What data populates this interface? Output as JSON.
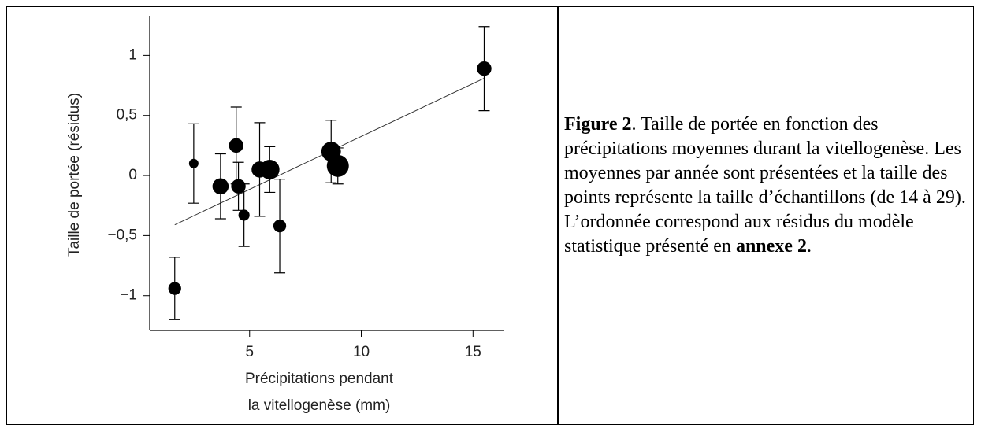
{
  "chart_data": {
    "type": "scatter",
    "ylabel": "Taille de portée (résidus)",
    "xlabel": [
      "Précipitations pendant",
      "la vitellogenèse (mm)"
    ],
    "x": [
      1.65,
      2.5,
      3.7,
      4.4,
      4.5,
      4.75,
      5.45,
      5.9,
      6.35,
      8.65,
      8.95,
      15.5
    ],
    "values": [
      -0.94,
      0.1,
      -0.09,
      0.25,
      -0.09,
      -0.33,
      0.05,
      0.05,
      -0.42,
      0.2,
      0.08,
      0.89
    ],
    "errors": [
      0.26,
      0.33,
      0.27,
      0.32,
      0.2,
      0.26,
      0.39,
      0.19,
      0.39,
      0.26,
      0.15,
      0.35
    ],
    "sizes": [
      18,
      14,
      22,
      20,
      20,
      16,
      22,
      26,
      18,
      26,
      29,
      20
    ],
    "fit": {
      "x": [
        1.65,
        15.5
      ],
      "values": [
        -0.41,
        0.81
      ]
    },
    "color": "#000000",
    "xlim": [
      0.53,
      16.4
    ],
    "xticks": [
      5,
      10,
      15
    ],
    "ylim": [
      -1.29,
      1.33
    ],
    "yticks": [
      {
        "value": -1,
        "label": "−1"
      },
      {
        "value": -0.5,
        "label": "−0,5"
      },
      0,
      {
        "value": 0.5,
        "label": "0,5"
      },
      1
    ]
  },
  "caption": {
    "label": "Figure 2",
    "text": ". Taille de portée en fonction des précipitations moyennes durant la vitellogenèse. Les moyennes par année sont présentées et la taille des points représente la taille d’échantillons (de 14 à 29). L’ordonnée correspond aux résidus du modèle statistique présenté en ",
    "ref": "annexe 2",
    "end": "."
  }
}
